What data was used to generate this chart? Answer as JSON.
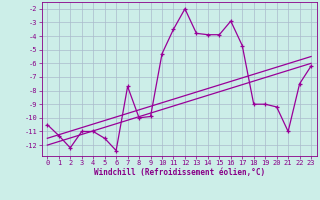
{
  "xlabel": "Windchill (Refroidissement éolien,°C)",
  "background_color": "#cceee8",
  "grid_color": "#aabbcc",
  "line_color": "#990099",
  "hours": [
    0,
    1,
    2,
    3,
    4,
    5,
    6,
    7,
    8,
    9,
    10,
    11,
    12,
    13,
    14,
    15,
    16,
    17,
    18,
    19,
    20,
    21,
    22,
    23
  ],
  "windchill": [
    -10.5,
    -11.3,
    -12.2,
    -11.0,
    -11.0,
    -11.5,
    -12.4,
    -7.7,
    -10.0,
    -9.9,
    -5.3,
    -3.5,
    -2.0,
    -3.8,
    -3.9,
    -3.9,
    -2.9,
    -4.7,
    -9.0,
    -9.0,
    -9.2,
    -11.0,
    -7.5,
    -6.2
  ],
  "ref_line1_x": [
    0,
    23
  ],
  "ref_line1_y": [
    -12.0,
    -6.0
  ],
  "ref_line2_x": [
    0,
    23
  ],
  "ref_line2_y": [
    -11.5,
    -5.5
  ],
  "ylim": [
    -12.8,
    -1.5
  ],
  "xlim": [
    -0.5,
    23.5
  ],
  "yticks": [
    -12,
    -11,
    -10,
    -9,
    -8,
    -7,
    -6,
    -5,
    -4,
    -3,
    -2
  ],
  "xticks": [
    0,
    1,
    2,
    3,
    4,
    5,
    6,
    7,
    8,
    9,
    10,
    11,
    12,
    13,
    14,
    15,
    16,
    17,
    18,
    19,
    20,
    21,
    22,
    23
  ],
  "tick_color": "#880088",
  "label_fontsize": 5.5,
  "tick_fontsize": 5.0
}
